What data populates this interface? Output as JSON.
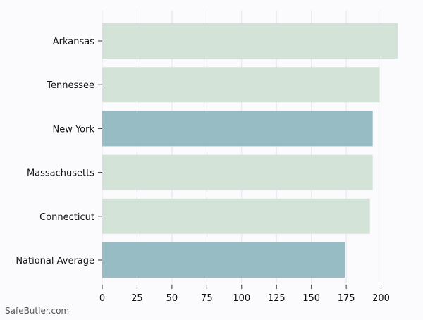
{
  "watermark": "SafeButler.com",
  "chart_data": {
    "type": "bar",
    "orientation": "horizontal",
    "categories": [
      "Arkansas",
      "Tennessee",
      "New York",
      "Massachusetts",
      "Connecticut",
      "National Average"
    ],
    "values": [
      212,
      199,
      194,
      194,
      192,
      174
    ],
    "xlim": [
      0,
      225
    ],
    "xticks": [
      0,
      25,
      50,
      75,
      100,
      125,
      150,
      175,
      200
    ],
    "grid": true,
    "colors": {
      "default": "#d4e3d8",
      "highlight": "#98bcc4"
    },
    "highlighted": [
      "New York",
      "National Average"
    ],
    "title": "",
    "xlabel": "",
    "ylabel": ""
  }
}
